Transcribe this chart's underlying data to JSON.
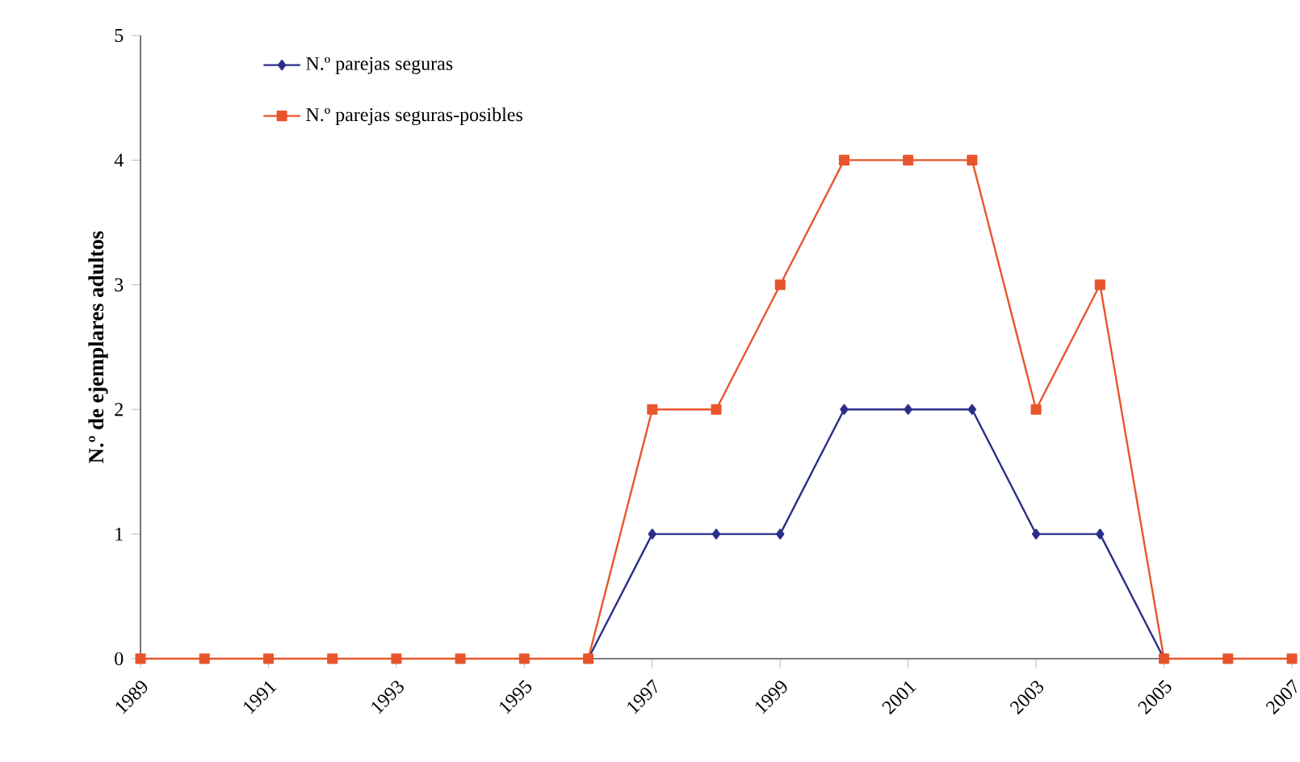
{
  "chart_data": {
    "type": "line",
    "ylabel": "N.º de ejemplares adultos",
    "x": [
      1989,
      1990,
      1991,
      1992,
      1993,
      1994,
      1995,
      1996,
      1997,
      1998,
      1999,
      2000,
      2001,
      2002,
      2003,
      2004,
      2005,
      2006,
      2007
    ],
    "xlim": [
      1989,
      2007
    ],
    "xticks": [
      1989,
      1991,
      1993,
      1995,
      1997,
      1999,
      2001,
      2003,
      2005,
      2007
    ],
    "ylim": [
      0,
      5
    ],
    "yticks": [
      0,
      1,
      2,
      3,
      4,
      5
    ],
    "series": [
      {
        "name": "N.º parejas seguras",
        "color": "#2b2f8a",
        "marker": "diamond",
        "values": [
          null,
          null,
          null,
          null,
          null,
          null,
          null,
          0,
          1,
          1,
          1,
          2,
          2,
          2,
          1,
          1,
          0,
          null,
          null
        ]
      },
      {
        "name": "N.º parejas seguras-posibles",
        "color": "#e8552d",
        "marker": "square",
        "values": [
          0,
          0,
          0,
          0,
          0,
          0,
          0,
          0,
          2,
          2,
          3,
          4,
          4,
          4,
          2,
          3,
          0,
          0,
          0
        ]
      }
    ],
    "legend": "top left",
    "grid": false,
    "line_style": "solid"
  }
}
